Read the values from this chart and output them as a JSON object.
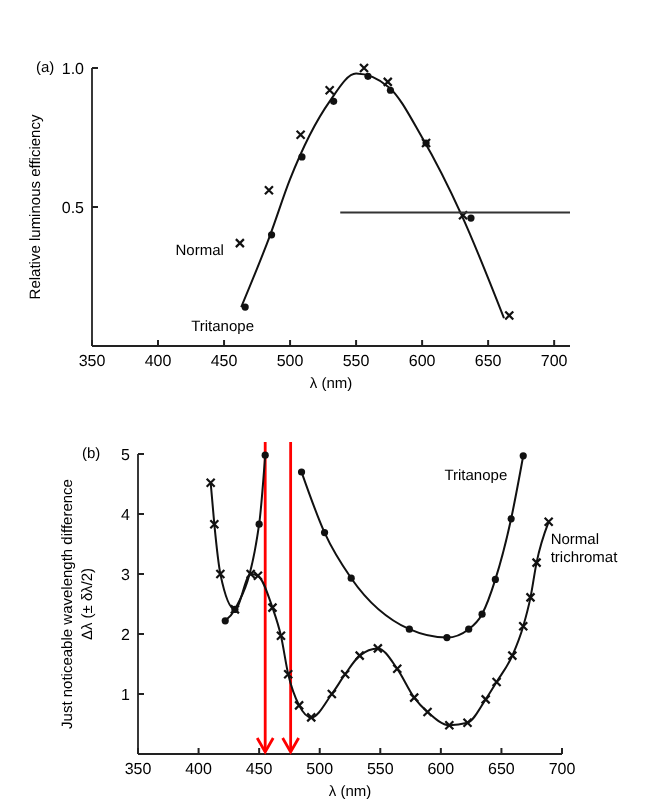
{
  "chart_data": [
    {
      "type": "scatter",
      "title": "(a)",
      "xlabel": "λ (nm)",
      "ylabel": "Relative luminous efficiency",
      "xlim": [
        350,
        712
      ],
      "xticks": [
        350,
        400,
        450,
        500,
        550,
        600,
        650,
        700
      ],
      "ylim": [
        0,
        1.0
      ],
      "yticks": [
        {
          "value": 0.5,
          "label": "0.5"
        },
        {
          "value": 1,
          "label": "1.0"
        }
      ],
      "grid": false,
      "series": [
        {
          "name": "Normal",
          "marker": "cross",
          "color": "#111111",
          "x": [
            462,
            484,
            508,
            530,
            556,
            574,
            603,
            631,
            666
          ],
          "values": [
            0.37,
            0.56,
            0.76,
            0.92,
            1.0,
            0.95,
            0.73,
            0.47,
            0.11
          ]
        },
        {
          "name": "Tritanope",
          "type": "scatter",
          "marker": "circle",
          "color": "#111111",
          "x": [
            466,
            486,
            509,
            533,
            559,
            576,
            603,
            637
          ],
          "values": [
            0.14,
            0.4,
            0.68,
            0.88,
            0.97,
            0.92,
            0.73,
            0.46
          ]
        },
        {
          "type": "line",
          "marker": "none",
          "color": "#111111",
          "x": [
            463,
            485,
            500,
            530,
            550,
            575,
            600,
            630,
            662
          ],
          "values": [
            0.14,
            0.4,
            0.6,
            0.88,
            0.98,
            0.93,
            0.75,
            0.47,
            0.1
          ]
        },
        {
          "type": "line",
          "marker": "none",
          "color": "#333333",
          "x": [
            538,
            712
          ],
          "values": [
            0.48,
            0.48
          ]
        }
      ]
    },
    {
      "type": "line",
      "title": "(b)",
      "xlabel": "λ (nm)",
      "ylabel": "Just noticeable wavelength difference\nΔλ (± δλ/2)",
      "xlim": [
        350,
        700
      ],
      "xticks": [
        350,
        400,
        450,
        500,
        550,
        600,
        650,
        700
      ],
      "ylim": [
        0,
        5
      ],
      "yticks": [
        1,
        2,
        3,
        4,
        5
      ],
      "grid": false,
      "ref_lines": [
        {
          "axis": "x",
          "value": 455,
          "color": "#ff0000"
        },
        {
          "axis": "x",
          "value": 476,
          "color": "#ff0000"
        }
      ],
      "series": [
        {
          "name": "Tritanope",
          "marker": "circle",
          "color": "#111111",
          "x": [
            422,
            430,
            450,
            455,
            478,
            485,
            504,
            526,
            574,
            605,
            623,
            634,
            645,
            658,
            668
          ],
          "values": [
            2.22,
            2.41,
            3.83,
            4.98,
            null,
            4.7,
            3.69,
            2.93,
            2.08,
            1.94,
            2.08,
            2.33,
            2.91,
            3.92,
            4.97
          ]
        },
        {
          "name": "Normal trichromat",
          "type": "line",
          "marker": "cross",
          "color": "#111111",
          "x": [
            410,
            413,
            418,
            430,
            443,
            449,
            461,
            468,
            474,
            483,
            493,
            510,
            521,
            533,
            548,
            564,
            578,
            589,
            607,
            622,
            637,
            646,
            659,
            668,
            674,
            679,
            689
          ],
          "values": [
            4.52,
            3.83,
            3.0,
            2.41,
            3.0,
            2.97,
            2.44,
            1.97,
            1.33,
            0.81,
            0.61,
            1.0,
            1.33,
            1.64,
            1.76,
            1.42,
            0.94,
            0.7,
            0.48,
            0.52,
            0.91,
            1.2,
            1.64,
            2.13,
            2.61,
            3.19,
            3.87
          ]
        }
      ]
    }
  ]
}
